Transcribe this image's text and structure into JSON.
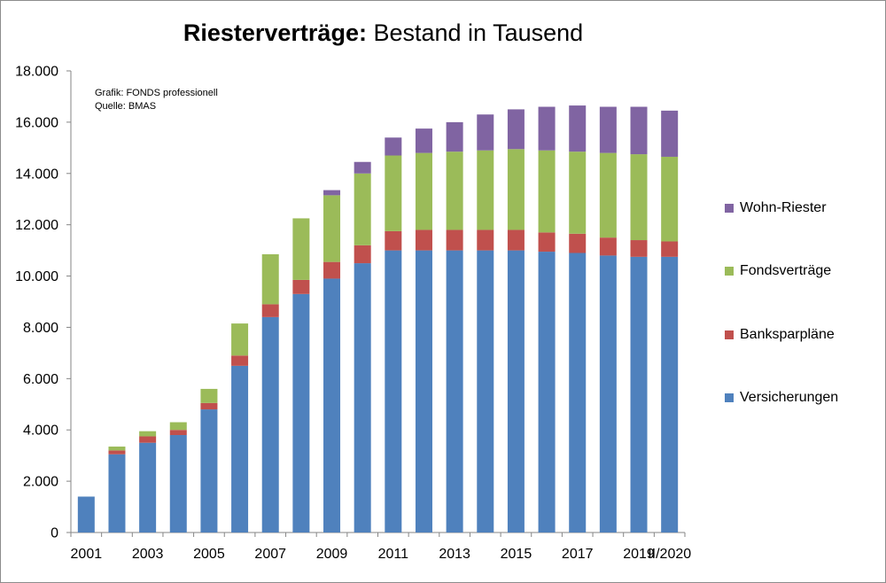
{
  "title": {
    "bold": "Riesterverträge:",
    "rest": "Bestand in Tausend"
  },
  "source_note": {
    "line1": "Grafik: FONDS professionell",
    "line2": "Quelle: BMAS"
  },
  "colors": {
    "versicherungen": "#4f81bd",
    "banksparplaene": "#c0504d",
    "fondsvertraege": "#9bbb59",
    "wohn_riester": "#8064a2"
  },
  "chart_data": {
    "type": "bar",
    "stacked": true,
    "title": "Riesterverträge: Bestand in Tausend",
    "categories": [
      "2001",
      "2002",
      "2003",
      "2004",
      "2005",
      "2006",
      "2007",
      "2008",
      "2009",
      "2010",
      "2011",
      "2012",
      "2013",
      "2014",
      "2015",
      "2016",
      "2017",
      "2018",
      "2019",
      "II/2020"
    ],
    "x_tick_labels": [
      "2001",
      "2003",
      "2005",
      "2007",
      "2009",
      "2011",
      "2013",
      "2015",
      "2017",
      "2019",
      "II/2020"
    ],
    "y_ticks": [
      "0",
      "2.000",
      "4.000",
      "6.000",
      "8.000",
      "10.000",
      "12.000",
      "14.000",
      "16.000",
      "18.000"
    ],
    "ylim": [
      0,
      18000
    ],
    "grid": false,
    "legend_position": "right",
    "series": [
      {
        "name": "Versicherungen",
        "color": "#4f81bd",
        "values": [
          1400,
          3050,
          3500,
          3800,
          4800,
          6500,
          8400,
          9300,
          9900,
          10500,
          11000,
          11000,
          11000,
          11000,
          11000,
          10950,
          10900,
          10800,
          10750,
          10750
        ]
      },
      {
        "name": "Banksparpläne",
        "color": "#c0504d",
        "values": [
          0,
          150,
          250,
          200,
          250,
          400,
          500,
          550,
          650,
          700,
          750,
          800,
          800,
          800,
          800,
          750,
          750,
          700,
          650,
          600
        ]
      },
      {
        "name": "Fondsverträge",
        "color": "#9bbb59",
        "values": [
          0,
          150,
          200,
          300,
          550,
          1250,
          1950,
          2400,
          2600,
          2800,
          2950,
          3000,
          3050,
          3100,
          3150,
          3200,
          3200,
          3300,
          3350,
          3300
        ]
      },
      {
        "name": "Wohn-Riester",
        "color": "#8064a2",
        "values": [
          0,
          0,
          0,
          0,
          0,
          0,
          0,
          0,
          200,
          450,
          700,
          950,
          1150,
          1400,
          1550,
          1700,
          1800,
          1800,
          1850,
          1800
        ]
      }
    ]
  },
  "legend": {
    "items": [
      {
        "label": "Wohn-Riester",
        "color": "#8064a2"
      },
      {
        "label": "Fondsverträge",
        "color": "#9bbb59"
      },
      {
        "label": "Banksparpläne",
        "color": "#c0504d"
      },
      {
        "label": "Versicherungen",
        "color": "#4f81bd"
      }
    ]
  }
}
